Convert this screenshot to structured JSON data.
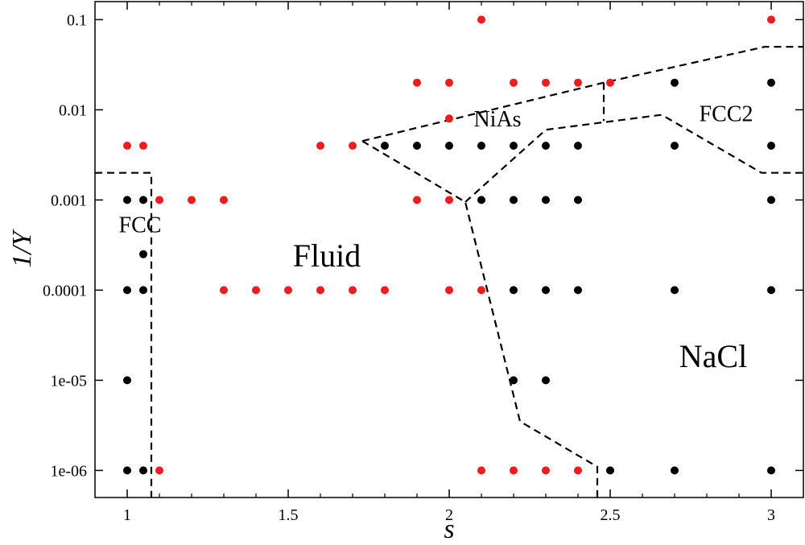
{
  "chart_data": {
    "type": "scatter",
    "xlabel": "s",
    "ylabel": "1/Y",
    "xlim": [
      0.9,
      3.1
    ],
    "ylim_log10": [
      -6.3,
      -0.8
    ],
    "y_scale": "log",
    "grid": false,
    "x_ticks": [
      {
        "value": 1,
        "label": "1"
      },
      {
        "value": 1.5,
        "label": "1.5"
      },
      {
        "value": 2,
        "label": "2"
      },
      {
        "value": 2.5,
        "label": "2.5"
      },
      {
        "value": 3,
        "label": "3"
      }
    ],
    "y_ticks": [
      {
        "value": 0.1,
        "label": "0.1"
      },
      {
        "value": 0.01,
        "label": "0.01"
      },
      {
        "value": 0.001,
        "label": "0.001"
      },
      {
        "value": 0.0001,
        "label": "0.0001"
      },
      {
        "value": 1e-05,
        "label": "1e-05"
      },
      {
        "value": 1e-06,
        "label": "1e-06"
      }
    ],
    "series": [
      {
        "color": "#000000",
        "points": [
          [
            1,
            0.001
          ],
          [
            1.05,
            0.001
          ],
          [
            1.05,
            0.00025
          ],
          [
            1,
            0.0001
          ],
          [
            1.05,
            0.0001
          ],
          [
            1,
            1e-05
          ],
          [
            1,
            1e-06
          ],
          [
            1.05,
            1e-06
          ],
          [
            1.8,
            0.004
          ],
          [
            1.9,
            0.004
          ],
          [
            2,
            0.004
          ],
          [
            2.1,
            0.004
          ],
          [
            2.2,
            0.004
          ],
          [
            2.3,
            0.004
          ],
          [
            2.4,
            0.004
          ],
          [
            2.7,
            0.004
          ],
          [
            3,
            0.004
          ],
          [
            2.7,
            0.02
          ],
          [
            3,
            0.02
          ],
          [
            2.1,
            0.001
          ],
          [
            2.2,
            0.001
          ],
          [
            2.3,
            0.001
          ],
          [
            2.4,
            0.001
          ],
          [
            3,
            0.001
          ],
          [
            2.2,
            0.0001
          ],
          [
            2.3,
            0.0001
          ],
          [
            2.4,
            0.0001
          ],
          [
            2.7,
            0.0001
          ],
          [
            3,
            0.0001
          ],
          [
            2.2,
            1e-05
          ],
          [
            2.3,
            1e-05
          ],
          [
            2.5,
            1e-06
          ],
          [
            2.7,
            1e-06
          ],
          [
            3,
            1e-06
          ]
        ]
      },
      {
        "color": "#ee1c1c",
        "points": [
          [
            1,
            0.004
          ],
          [
            1.05,
            0.004
          ],
          [
            1.6,
            0.004
          ],
          [
            1.7,
            0.004
          ],
          [
            1.1,
            0.001
          ],
          [
            1.2,
            0.001
          ],
          [
            1.3,
            0.001
          ],
          [
            1.9,
            0.001
          ],
          [
            2,
            0.001
          ],
          [
            1.3,
            0.0001
          ],
          [
            1.4,
            0.0001
          ],
          [
            1.5,
            0.0001
          ],
          [
            1.6,
            0.0001
          ],
          [
            1.7,
            0.0001
          ],
          [
            1.8,
            0.0001
          ],
          [
            2,
            0.0001
          ],
          [
            2.1,
            0.0001
          ],
          [
            1.1,
            1e-06
          ],
          [
            2.1,
            1e-06
          ],
          [
            2.2,
            1e-06
          ],
          [
            2.3,
            1e-06
          ],
          [
            2.4,
            1e-06
          ],
          [
            2.1,
            0.1
          ],
          [
            3,
            0.1
          ],
          [
            1.9,
            0.02
          ],
          [
            2,
            0.02
          ],
          [
            2.2,
            0.02
          ],
          [
            2.3,
            0.02
          ],
          [
            2.4,
            0.02
          ],
          [
            2.5,
            0.02
          ],
          [
            2,
            0.008
          ]
        ]
      }
    ],
    "boundaries": [
      {
        "points": [
          [
            0.9,
            0.002
          ],
          [
            1.075,
            0.002
          ],
          [
            1.075,
            5e-07
          ]
        ]
      },
      {
        "points": [
          [
            1.73,
            0.0045
          ],
          [
            2.05,
            0.00095
          ],
          [
            2.22,
            3.5e-06
          ],
          [
            2.46,
            1.1e-06
          ],
          [
            2.46,
            5e-07
          ]
        ]
      },
      {
        "points": [
          [
            1.73,
            0.0045
          ],
          [
            2.48,
            0.02
          ],
          [
            2.98,
            0.05
          ],
          [
            3.1,
            0.05
          ]
        ]
      },
      {
        "points": [
          [
            2.05,
            0.00095
          ],
          [
            2.3,
            0.006
          ],
          [
            2.66,
            0.0088
          ],
          [
            2.97,
            0.002
          ],
          [
            3.1,
            0.002
          ]
        ]
      },
      {
        "points": [
          [
            2.48,
            0.02
          ],
          [
            2.48,
            0.0075
          ]
        ]
      }
    ],
    "region_labels": [
      {
        "text": "FCC",
        "x": 1.04,
        "y": 0.0005
      },
      {
        "text": "Fluid",
        "x": 1.62,
        "y": 0.00022
      },
      {
        "text": "NiAs",
        "x": 2.15,
        "y": 0.0075
      },
      {
        "text": "FCC2",
        "x": 2.86,
        "y": 0.0085
      },
      {
        "text": "NaCl",
        "x": 2.82,
        "y": 1.7e-05
      }
    ]
  }
}
